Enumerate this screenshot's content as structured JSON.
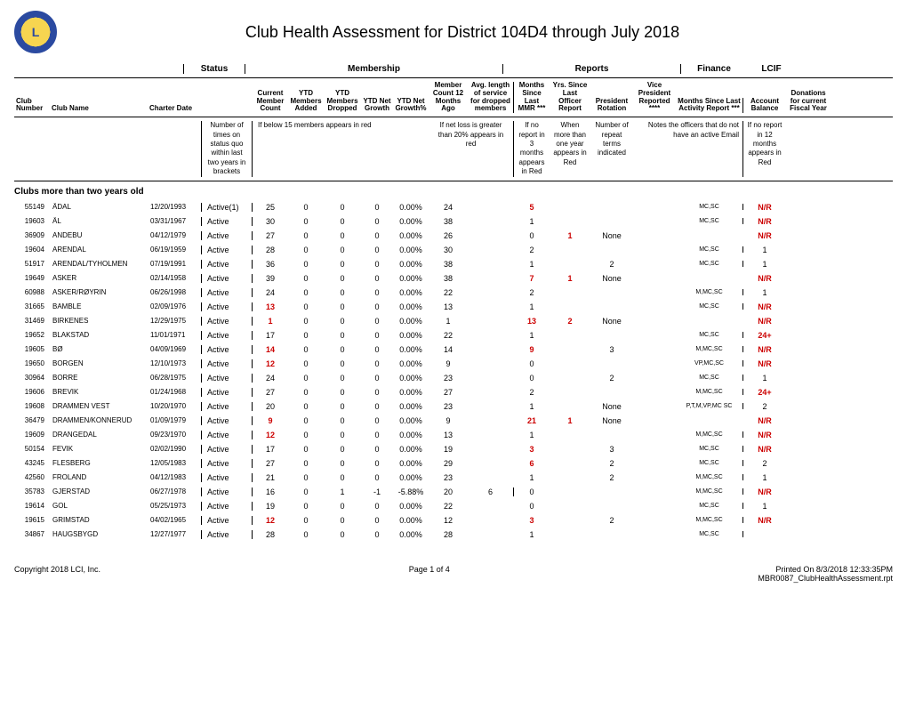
{
  "title": "Club Health Assessment for District 104D4 through July 2018",
  "group_headers": {
    "status": "Status",
    "membership": "Membership",
    "reports": "Reports",
    "finance": "Finance",
    "lcif": "LCIF"
  },
  "col_headers": {
    "club_number": "Club Number",
    "club_name": "Club Name",
    "charter_date": "Charter Date",
    "status_blank": "",
    "current_member_count": "Current Member Count",
    "ytd_added": "YTD Members Added",
    "ytd_dropped": "YTD Members Dropped",
    "ytd_net_growth": "YTD Net Growth",
    "ytd_net_growth_pct": "YTD Net Growth%",
    "member_count_12": "Member Count 12 Months Ago",
    "avg_length": "Avg. length of service for dropped members",
    "months_since_mmr": "Months Since Last MMR ***",
    "yrs_since_officer": "Yrs. Since Last Officer Report",
    "pres_rotation": "President Rotation",
    "vp_reported": "Vice President Reported ****",
    "months_since_activity": "Months Since Last Activity Report ***",
    "account_balance": "Account Balance",
    "donations": "Donations for current Fiscal Year"
  },
  "notes": {
    "status": "Number of times on status quo within last two years in brackets",
    "below15": "If below 15 members appears in red",
    "netloss": "If net loss is greater than 20% appears in red",
    "noreport": "If no report in 3 months appears in Red",
    "oneyear": "When more than one year appears in Red",
    "repeat": "Number of repeat terms indicated",
    "officers": "Notes the officers that do not have an active Email",
    "noreport12": "If no report in 12 months appears in Red"
  },
  "section_title": "Clubs more than two years old",
  "rows": [
    {
      "num": "55149",
      "name": "ÅDAL",
      "charter": "12/20/1993",
      "status": "Active(1)",
      "count": "25",
      "added": "0",
      "dropped": "0",
      "net": "0",
      "pct": "0.00%",
      "c12": "24",
      "avg": "",
      "mmr": "5",
      "mmr_red": true,
      "yrs": "",
      "pres": "",
      "vp": "",
      "act": "MC,SC",
      "bal": "N/R",
      "bal_red": true
    },
    {
      "num": "19603",
      "name": "ÅL",
      "charter": "03/31/1967",
      "status": "Active",
      "count": "30",
      "added": "0",
      "dropped": "0",
      "net": "0",
      "pct": "0.00%",
      "c12": "38",
      "avg": "",
      "mmr": "1",
      "yrs": "",
      "pres": "",
      "vp": "",
      "act": "MC,SC",
      "bal": "N/R",
      "bal_red": true
    },
    {
      "num": "36909",
      "name": "ANDEBU",
      "charter": "04/12/1979",
      "status": "Active",
      "count": "27",
      "added": "0",
      "dropped": "0",
      "net": "0",
      "pct": "0.00%",
      "c12": "26",
      "avg": "",
      "mmr": "0",
      "yrs": "1",
      "yrs_red": true,
      "pres": "None",
      "vp": "",
      "act": "",
      "bal": "N/R",
      "bal_red": true
    },
    {
      "num": "19604",
      "name": "ARENDAL",
      "charter": "06/19/1959",
      "status": "Active",
      "count": "28",
      "added": "0",
      "dropped": "0",
      "net": "0",
      "pct": "0.00%",
      "c12": "30",
      "avg": "",
      "mmr": "2",
      "yrs": "",
      "pres": "",
      "vp": "",
      "act": "MC,SC",
      "bal": "1"
    },
    {
      "num": "51917",
      "name": "ARENDAL/TYHOLMEN",
      "charter": "07/19/1991",
      "status": "Active",
      "count": "36",
      "added": "0",
      "dropped": "0",
      "net": "0",
      "pct": "0.00%",
      "c12": "38",
      "avg": "",
      "mmr": "1",
      "yrs": "",
      "pres": "2",
      "vp": "",
      "act": "MC,SC",
      "bal": "1"
    },
    {
      "num": "19649",
      "name": "ASKER",
      "charter": "02/14/1958",
      "status": "Active",
      "count": "39",
      "added": "0",
      "dropped": "0",
      "net": "0",
      "pct": "0.00%",
      "c12": "38",
      "avg": "",
      "mmr": "7",
      "mmr_red": true,
      "yrs": "1",
      "yrs_red": true,
      "pres": "None",
      "vp": "",
      "act": "",
      "bal": "N/R",
      "bal_red": true
    },
    {
      "num": "60988",
      "name": "ASKER/RØYRIN",
      "charter": "06/26/1998",
      "status": "Active",
      "count": "24",
      "added": "0",
      "dropped": "0",
      "net": "0",
      "pct": "0.00%",
      "c12": "22",
      "avg": "",
      "mmr": "2",
      "yrs": "",
      "pres": "",
      "vp": "",
      "act": "M,MC,SC",
      "bal": "1"
    },
    {
      "num": "31665",
      "name": "BAMBLE",
      "charter": "02/09/1976",
      "status": "Active",
      "count": "13",
      "count_red": true,
      "added": "0",
      "dropped": "0",
      "net": "0",
      "pct": "0.00%",
      "c12": "13",
      "avg": "",
      "mmr": "1",
      "yrs": "",
      "pres": "",
      "vp": "",
      "act": "MC,SC",
      "bal": "N/R",
      "bal_red": true
    },
    {
      "num": "31469",
      "name": "BIRKENES",
      "charter": "12/29/1975",
      "status": "Active",
      "count": "1",
      "count_red": true,
      "added": "0",
      "dropped": "0",
      "net": "0",
      "pct": "0.00%",
      "c12": "1",
      "avg": "",
      "mmr": "13",
      "mmr_red": true,
      "yrs": "2",
      "yrs_red": true,
      "pres": "None",
      "vp": "",
      "act": "",
      "bal": "N/R",
      "bal_red": true
    },
    {
      "num": "19652",
      "name": "BLAKSTAD",
      "charter": "11/01/1971",
      "status": "Active",
      "count": "17",
      "added": "0",
      "dropped": "0",
      "net": "0",
      "pct": "0.00%",
      "c12": "22",
      "avg": "",
      "mmr": "1",
      "yrs": "",
      "pres": "",
      "vp": "",
      "act": "MC,SC",
      "bal": "24+",
      "bal_red": true
    },
    {
      "num": "19605",
      "name": "BØ",
      "charter": "04/09/1969",
      "status": "Active",
      "count": "14",
      "count_red": true,
      "added": "0",
      "dropped": "0",
      "net": "0",
      "pct": "0.00%",
      "c12": "14",
      "avg": "",
      "mmr": "9",
      "mmr_red": true,
      "yrs": "",
      "pres": "3",
      "vp": "",
      "act": "M,MC,SC",
      "bal": "N/R",
      "bal_red": true
    },
    {
      "num": "19650",
      "name": "BORGEN",
      "charter": "12/10/1973",
      "status": "Active",
      "count": "12",
      "count_red": true,
      "added": "0",
      "dropped": "0",
      "net": "0",
      "pct": "0.00%",
      "c12": "9",
      "avg": "",
      "mmr": "0",
      "yrs": "",
      "pres": "",
      "vp": "",
      "act": "VP,MC,SC",
      "bal": "N/R",
      "bal_red": true
    },
    {
      "num": "30964",
      "name": "BORRE",
      "charter": "06/28/1975",
      "status": "Active",
      "count": "24",
      "added": "0",
      "dropped": "0",
      "net": "0",
      "pct": "0.00%",
      "c12": "23",
      "avg": "",
      "mmr": "0",
      "yrs": "",
      "pres": "2",
      "vp": "",
      "act": "MC,SC",
      "bal": "1"
    },
    {
      "num": "19606",
      "name": "BREVIK",
      "charter": "01/24/1968",
      "status": "Active",
      "count": "27",
      "added": "0",
      "dropped": "0",
      "net": "0",
      "pct": "0.00%",
      "c12": "27",
      "avg": "",
      "mmr": "2",
      "yrs": "",
      "pres": "",
      "vp": "",
      "act": "M,MC,SC",
      "bal": "24+",
      "bal_red": true
    },
    {
      "num": "19608",
      "name": "DRAMMEN VEST",
      "charter": "10/20/1970",
      "status": "Active",
      "count": "20",
      "added": "0",
      "dropped": "0",
      "net": "0",
      "pct": "0.00%",
      "c12": "23",
      "avg": "",
      "mmr": "1",
      "yrs": "",
      "pres": "None",
      "vp": "",
      "act": "P,T,M,VP,MC SC",
      "bal": "2"
    },
    {
      "num": "36479",
      "name": "DRAMMEN/KONNERUD",
      "charter": "01/09/1979",
      "status": "Active",
      "count": "9",
      "count_red": true,
      "added": "0",
      "dropped": "0",
      "net": "0",
      "pct": "0.00%",
      "c12": "9",
      "avg": "",
      "mmr": "21",
      "mmr_red": true,
      "yrs": "1",
      "yrs_red": true,
      "pres": "None",
      "vp": "",
      "act": "",
      "bal": "N/R",
      "bal_red": true
    },
    {
      "num": "19609",
      "name": "DRANGEDAL",
      "charter": "09/23/1970",
      "status": "Active",
      "count": "12",
      "count_red": true,
      "added": "0",
      "dropped": "0",
      "net": "0",
      "pct": "0.00%",
      "c12": "13",
      "avg": "",
      "mmr": "1",
      "yrs": "",
      "pres": "",
      "vp": "",
      "act": "M,MC,SC",
      "bal": "N/R",
      "bal_red": true
    },
    {
      "num": "50154",
      "name": "FEVIK",
      "charter": "02/02/1990",
      "status": "Active",
      "count": "17",
      "added": "0",
      "dropped": "0",
      "net": "0",
      "pct": "0.00%",
      "c12": "19",
      "avg": "",
      "mmr": "3",
      "mmr_red": true,
      "yrs": "",
      "pres": "3",
      "vp": "",
      "act": "MC,SC",
      "bal": "N/R",
      "bal_red": true
    },
    {
      "num": "43245",
      "name": "FLESBERG",
      "charter": "12/05/1983",
      "status": "Active",
      "count": "27",
      "added": "0",
      "dropped": "0",
      "net": "0",
      "pct": "0.00%",
      "c12": "29",
      "avg": "",
      "mmr": "6",
      "mmr_red": true,
      "yrs": "",
      "pres": "2",
      "vp": "",
      "act": "MC,SC",
      "bal": "2"
    },
    {
      "num": "42560",
      "name": "FROLAND",
      "charter": "04/12/1983",
      "status": "Active",
      "count": "21",
      "added": "0",
      "dropped": "0",
      "net": "0",
      "pct": "0.00%",
      "c12": "23",
      "avg": "",
      "mmr": "1",
      "yrs": "",
      "pres": "2",
      "vp": "",
      "act": "M,MC,SC",
      "bal": "1"
    },
    {
      "num": "35783",
      "name": "GJERSTAD",
      "charter": "06/27/1978",
      "status": "Active",
      "count": "16",
      "added": "0",
      "dropped": "1",
      "net": "-1",
      "pct": "-5.88%",
      "c12": "20",
      "avg": "6",
      "mmr": "0",
      "yrs": "",
      "pres": "",
      "vp": "",
      "act": "M,MC,SC",
      "bal": "N/R",
      "bal_red": true
    },
    {
      "num": "19614",
      "name": "GOL",
      "charter": "05/25/1973",
      "status": "Active",
      "count": "19",
      "added": "0",
      "dropped": "0",
      "net": "0",
      "pct": "0.00%",
      "c12": "22",
      "avg": "",
      "mmr": "0",
      "yrs": "",
      "pres": "",
      "vp": "",
      "act": "MC,SC",
      "bal": "1"
    },
    {
      "num": "19615",
      "name": "GRIMSTAD",
      "charter": "04/02/1965",
      "status": "Active",
      "count": "12",
      "count_red": true,
      "added": "0",
      "dropped": "0",
      "net": "0",
      "pct": "0.00%",
      "c12": "12",
      "avg": "",
      "mmr": "3",
      "mmr_red": true,
      "yrs": "",
      "pres": "2",
      "vp": "",
      "act": "M,MC,SC",
      "bal": "N/R",
      "bal_red": true
    },
    {
      "num": "34867",
      "name": "HAUGSBYGD",
      "charter": "12/27/1977",
      "status": "Active",
      "count": "28",
      "added": "0",
      "dropped": "0",
      "net": "0",
      "pct": "0.00%",
      "c12": "28",
      "avg": "",
      "mmr": "1",
      "yrs": "",
      "pres": "",
      "vp": "",
      "act": "MC,SC",
      "bal": ""
    }
  ],
  "footer": {
    "copyright": "Copyright 2018 LCI, Inc.",
    "page": "Page 1 of 4",
    "printed": "Printed On 8/3/2018 12:33:35PM",
    "report": "MBR0087_ClubHealthAssessment.rpt"
  }
}
